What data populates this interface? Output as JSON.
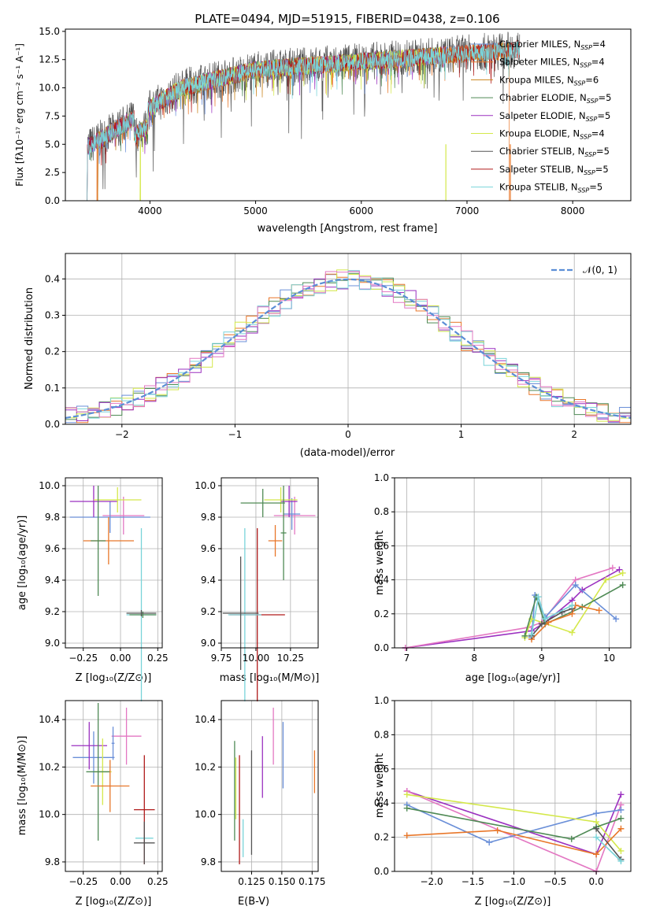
{
  "colors": {
    "chabrier_miles": "#6a8fd8",
    "salpeter_miles": "#e8772a",
    "kroupa_miles": "#c9821a",
    "chabrier_elodie": "#4f8a55",
    "salpeter_elodie": "#9b30c0",
    "kroupa_elodie": "#d4e84a",
    "chabrier_stelib": "#555555",
    "salpeter_stelib": "#b01a1a",
    "kroupa_stelib": "#79d4d9",
    "pink": "#e377c2"
  },
  "chart_data": [
    {
      "type": "line",
      "title": "PLATE=0494, MJD=51915, FIBERID=0438, z=0.106",
      "xlabel": "wavelength [Angstrom, rest frame]",
      "ylabel": "Flux [fλ10⁻¹⁷ erg cm⁻² s⁻¹ A⁻¹]",
      "xlim": [
        3200,
        8550
      ],
      "ylim": [
        0,
        15.2
      ],
      "xticks": [
        "4000",
        "5000",
        "6000",
        "7000",
        "8000"
      ],
      "yticks": [
        "0.0",
        "2.5",
        "5.0",
        "7.5",
        "10.0",
        "12.5",
        "15.0"
      ],
      "legend": "right",
      "series": [
        {
          "name": "Chabrier MILES, N_SSP=4",
          "label": "Chabrier MILES, N",
          "sub": "SSP",
          "suffix": "=4",
          "range": [
            3500,
            7400
          ]
        },
        {
          "name": "Salpeter MILES, N_SSP=4",
          "label": "Salpeter MILES, N",
          "sub": "SSP",
          "suffix": "=4",
          "range": [
            3500,
            7400
          ]
        },
        {
          "name": "Kroupa MILES, N_SSP=6",
          "label": "Kroupa MILES, N",
          "sub": "SSP",
          "suffix": "=6",
          "range": [
            3500,
            7400
          ]
        },
        {
          "name": "Chabrier ELODIE, N_SSP=5",
          "label": "Chabrier ELODIE, N",
          "sub": "SSP",
          "suffix": "=5",
          "range": [
            3400,
            6800
          ]
        },
        {
          "name": "Salpeter ELODIE, N_SSP=5",
          "label": "Salpeter ELODIE, N",
          "sub": "SSP",
          "suffix": "=5",
          "range": [
            3400,
            6800
          ]
        },
        {
          "name": "Kroupa ELODIE, N_SSP=4",
          "label": "Kroupa ELODIE, N",
          "sub": "SSP",
          "suffix": "=4",
          "range": [
            3900,
            6800
          ]
        },
        {
          "name": "Chabrier STELIB, N_SSP=5",
          "label": "Chabrier STELIB, N",
          "sub": "SSP",
          "suffix": "=5",
          "range": [
            3400,
            7500
          ]
        },
        {
          "name": "Salpeter STELIB, N_SSP=5",
          "label": "Salpeter STELIB, N",
          "sub": "SSP",
          "suffix": "=5",
          "range": [
            3400,
            7500
          ]
        },
        {
          "name": "Kroupa STELIB, N_SSP=5",
          "label": "Kroupa STELIB, N",
          "sub": "SSP",
          "suffix": "=5",
          "range": [
            3400,
            7500
          ]
        }
      ]
    },
    {
      "type": "bar",
      "xlabel": "(data-model)/error",
      "ylabel": "Normed distribution",
      "xlim": [
        -2.5,
        2.5
      ],
      "ylim": [
        0,
        0.47
      ],
      "xticks": [
        "−2",
        "−1",
        "0",
        "1",
        "2"
      ],
      "yticks": [
        "0.0",
        "0.1",
        "0.2",
        "0.3",
        "0.4"
      ],
      "legend_entry": "𝒩(0, 1)",
      "legend": "top-right"
    },
    {
      "type": "scatter",
      "ylabel": "age  [log₁₀(age/yr)]",
      "xlabel": "Z [log₁₀(Z/Z⊙)]",
      "xlim": [
        -0.37,
        0.28
      ],
      "ylim": [
        8.97,
        10.05
      ],
      "xticks": [
        "−0.25",
        "0.00",
        "0.25"
      ],
      "yticks": [
        "9.0",
        "9.2",
        "9.4",
        "9.6",
        "9.8",
        "10.0"
      ]
    },
    {
      "type": "scatter",
      "xlabel": "mass [log₁₀(M/M⊙)]",
      "xlim": [
        9.75,
        10.45
      ],
      "ylim": [
        8.97,
        10.05
      ],
      "xticks": [
        "9.75",
        "10.00",
        "10.25"
      ],
      "yticks": [
        "9.0",
        "9.2",
        "9.4",
        "9.6",
        "9.8",
        "10.0"
      ]
    },
    {
      "type": "line",
      "ylabel": "mass weight",
      "xlabel": "age  [log₁₀(age/yr)]",
      "xlim": [
        6.82,
        10.32
      ],
      "ylim": [
        0,
        1.0
      ],
      "xticks": [
        "7",
        "8",
        "9",
        "10"
      ],
      "yticks": [
        "0.0",
        "0.2",
        "0.4",
        "0.6",
        "0.8",
        "1.0"
      ]
    },
    {
      "type": "scatter",
      "ylabel": "mass [log₁₀(M/M⊙)]",
      "xlabel": "Z [log₁₀(Z/Z⊙)]",
      "xlim": [
        -0.37,
        0.28
      ],
      "ylim": [
        9.76,
        10.48
      ],
      "xticks": [
        "−0.25",
        "0.00",
        "0.25"
      ],
      "yticks": [
        "9.8",
        "10.0",
        "10.2",
        "10.4"
      ]
    },
    {
      "type": "scatter",
      "xlabel": "E(B-V)",
      "xlim": [
        0.1,
        0.18
      ],
      "ylim": [
        9.76,
        10.48
      ],
      "xticks": [
        "0.125",
        "0.150",
        "0.175"
      ],
      "yticks": [
        "9.8",
        "10.0",
        "10.2",
        "10.4"
      ]
    },
    {
      "type": "line",
      "ylabel": "mass weight",
      "xlabel": "Z [log₁₀(Z/Z⊙)]",
      "xlim": [
        -2.45,
        0.42
      ],
      "ylim": [
        0,
        1.0
      ],
      "xticks": [
        "−2.0",
        "−1.5",
        "−1.0",
        "−0.5",
        "0.0"
      ],
      "yticks": [
        "0.0",
        "0.2",
        "0.4",
        "0.6",
        "0.8",
        "1.0"
      ]
    }
  ],
  "errorbars": {
    "age_vs_Z": [
      {
        "c": "pink",
        "x": 0.02,
        "xe": 0.14,
        "y": 9.81,
        "ye": 0.12
      },
      {
        "c": "chabrier_miles",
        "x": -0.07,
        "xe": 0.27,
        "y": 9.8,
        "ye": 0.1
      },
      {
        "c": "salpeter_elodie",
        "x": -0.18,
        "xe": 0.16,
        "y": 9.9,
        "ye": 0.1
      },
      {
        "c": "kroupa_elodie",
        "x": -0.02,
        "xe": 0.16,
        "y": 9.91,
        "ye": 0.08
      },
      {
        "c": "salpeter_miles",
        "x": -0.08,
        "xe": 0.17,
        "y": 9.65,
        "ye": 0.15
      },
      {
        "c": "chabrier_elodie",
        "x": -0.15,
        "xe": 0.05,
        "y": 9.65,
        "ye": 0.35
      },
      {
        "c": "kroupa_stelib",
        "x": 0.14,
        "xe": 0.1,
        "y": 9.18,
        "ye": 0.55
      },
      {
        "c": "chabrier_elodie",
        "x": 0.15,
        "xe": 0.09,
        "y": 9.18,
        "ye": 0.02
      },
      {
        "c": "chabrier_stelib",
        "x": 0.14,
        "xe": 0.1,
        "y": 9.19,
        "ye": 0.02
      }
    ],
    "age_vs_mass": [
      {
        "c": "pink",
        "x": 10.28,
        "xe": 0.15,
        "y": 9.81,
        "ye": 0.12
      },
      {
        "c": "chabrier_miles",
        "x": 10.26,
        "xe": 0.06,
        "y": 9.82,
        "ye": 0.1
      },
      {
        "c": "salpeter_elodie",
        "x": 10.24,
        "xe": 0.06,
        "y": 9.9,
        "ye": 0.1
      },
      {
        "c": "kroupa_elodie",
        "x": 10.18,
        "xe": 0.12,
        "y": 9.91,
        "ye": 0.08
      },
      {
        "c": "chabrier_elodie",
        "x": 10.05,
        "xe": 0.16,
        "y": 9.89,
        "ye": 0.09
      },
      {
        "c": "salpeter_miles",
        "x": 10.14,
        "xe": 0.05,
        "y": 9.65,
        "ye": 0.1
      },
      {
        "c": "salpeter_stelib",
        "x": 10.01,
        "xe": 0.2,
        "y": 9.18,
        "ye": 0.55
      },
      {
        "c": "kroupa_stelib",
        "x": 9.92,
        "xe": 0.12,
        "y": 9.18,
        "ye": 0.55
      },
      {
        "c": "chabrier_stelib",
        "x": 9.89,
        "xe": 0.13,
        "y": 9.19,
        "ye": 0.36
      },
      {
        "c": "chabrier_elodie",
        "x": 10.2,
        "xe": 0.02,
        "y": 9.7,
        "ye": 0.3
      }
    ],
    "mass_vs_Z": [
      {
        "c": "pink",
        "x": 0.04,
        "xe": 0.1,
        "y": 10.33,
        "ye": 0.12
      },
      {
        "c": "chabrier_miles",
        "x": -0.18,
        "xe": 0.14,
        "y": 10.24,
        "ye": 0.11
      },
      {
        "c": "salpeter_elodie",
        "x": -0.21,
        "xe": 0.12,
        "y": 10.29,
        "ye": 0.1
      },
      {
        "c": "kroupa_elodie",
        "x": -0.12,
        "xe": 0.06,
        "y": 10.18,
        "ye": 0.14
      },
      {
        "c": "chabrier_elodie",
        "x": -0.15,
        "xe": 0.08,
        "y": 10.18,
        "ye": 0.29
      },
      {
        "c": "salpeter_miles",
        "x": -0.07,
        "xe": 0.13,
        "y": 10.12,
        "ye": 0.11
      },
      {
        "c": "kroupa_stelib",
        "x": 0.16,
        "xe": 0.06,
        "y": 9.9,
        "ye": 0.07
      },
      {
        "c": "salpeter_stelib",
        "x": 0.16,
        "xe": 0.07,
        "y": 10.02,
        "ye": 0.23
      },
      {
        "c": "chabrier_stelib",
        "x": 0.16,
        "xe": 0.07,
        "y": 9.88,
        "ye": 0.09
      },
      {
        "c": "chabrier_miles",
        "x": -0.05,
        "xe": 0.01,
        "y": 10.3,
        "ye": 0.07
      }
    ],
    "mass_vs_ebv": [
      {
        "c": "pink",
        "x": 0.143,
        "y": 10.33,
        "ye": 0.12
      },
      {
        "c": "chabrier_miles",
        "x": 0.151,
        "y": 10.25,
        "ye": 0.14
      },
      {
        "c": "salpeter_elodie",
        "x": 0.134,
        "y": 10.2,
        "ye": 0.13
      },
      {
        "c": "kroupa_elodie",
        "x": 0.112,
        "y": 10.11,
        "ye": 0.13
      },
      {
        "c": "chabrier_elodie",
        "x": 0.111,
        "y": 10.1,
        "ye": 0.21
      },
      {
        "c": "salpeter_miles",
        "x": 0.177,
        "y": 10.18,
        "ye": 0.09
      },
      {
        "c": "salpeter_stelib",
        "x": 0.115,
        "y": 10.02,
        "ye": 0.23
      },
      {
        "c": "kroupa_stelib",
        "x": 0.118,
        "y": 9.9,
        "ye": 0.08
      },
      {
        "c": "chabrier_stelib",
        "x": 0.125,
        "y": 10.05,
        "ye": 0.22
      }
    ]
  },
  "mw_age": [
    {
      "c": "salpeter_elodie",
      "pts": [
        [
          6.98,
          0.0
        ],
        [
          8.85,
          0.1
        ],
        [
          9.05,
          0.15
        ],
        [
          9.45,
          0.28
        ],
        [
          9.6,
          0.34
        ],
        [
          10.15,
          0.46
        ]
      ]
    },
    {
      "c": "pink",
      "pts": [
        [
          6.98,
          0.0
        ],
        [
          8.8,
          0.12
        ],
        [
          9.0,
          0.15
        ],
        [
          9.5,
          0.4
        ],
        [
          10.05,
          0.47
        ]
      ]
    },
    {
      "c": "chabrier_miles",
      "pts": [
        [
          8.85,
          0.06
        ],
        [
          8.9,
          0.31
        ],
        [
          9.05,
          0.18
        ],
        [
          9.5,
          0.37
        ],
        [
          10.1,
          0.17
        ]
      ]
    },
    {
      "c": "kroupa_elodie",
      "pts": [
        [
          8.75,
          0.06
        ],
        [
          8.85,
          0.17
        ],
        [
          9.45,
          0.09
        ],
        [
          9.95,
          0.4
        ],
        [
          10.2,
          0.44
        ]
      ]
    },
    {
      "c": "chabrier_elodie",
      "pts": [
        [
          8.75,
          0.07
        ],
        [
          8.92,
          0.3
        ],
        [
          9.05,
          0.14
        ],
        [
          9.6,
          0.24
        ],
        [
          10.2,
          0.37
        ]
      ]
    },
    {
      "c": "salpeter_miles",
      "pts": [
        [
          8.85,
          0.05
        ],
        [
          9.1,
          0.15
        ],
        [
          9.45,
          0.2
        ],
        [
          9.5,
          0.25
        ],
        [
          9.85,
          0.22
        ]
      ]
    },
    {
      "c": "chabrier_stelib",
      "pts": [
        [
          8.85,
          0.07
        ],
        [
          9.0,
          0.14
        ],
        [
          9.3,
          0.21
        ],
        [
          9.45,
          0.23
        ]
      ]
    },
    {
      "c": "kroupa_stelib",
      "pts": [
        [
          8.85,
          0.08
        ],
        [
          8.95,
          0.3
        ],
        [
          9.05,
          0.17
        ],
        [
          9.45,
          0.25
        ]
      ]
    }
  ],
  "mw_Z": [
    {
      "c": "salpeter_elodie",
      "pts": [
        [
          -2.3,
          0.47
        ],
        [
          0.0,
          0.1
        ],
        [
          0.3,
          0.45
        ]
      ]
    },
    {
      "c": "pink",
      "pts": [
        [
          -2.3,
          0.47
        ],
        [
          0.0,
          0.0
        ],
        [
          0.3,
          0.39
        ]
      ]
    },
    {
      "c": "chabrier_miles",
      "pts": [
        [
          -2.3,
          0.39
        ],
        [
          -1.3,
          0.17
        ],
        [
          0.0,
          0.34
        ],
        [
          0.3,
          0.36
        ]
      ]
    },
    {
      "c": "kroupa_elodie",
      "pts": [
        [
          -2.3,
          0.45
        ],
        [
          0.0,
          0.29
        ],
        [
          0.3,
          0.12
        ]
      ]
    },
    {
      "c": "chabrier_elodie",
      "pts": [
        [
          -2.3,
          0.37
        ],
        [
          -0.3,
          0.19
        ],
        [
          0.0,
          0.26
        ],
        [
          0.3,
          0.31
        ]
      ]
    },
    {
      "c": "salpeter_miles",
      "pts": [
        [
          -2.3,
          0.21
        ],
        [
          -1.2,
          0.24
        ],
        [
          0.0,
          0.1
        ],
        [
          0.3,
          0.25
        ]
      ]
    },
    {
      "c": "chabrier_stelib",
      "pts": [
        [
          0.0,
          0.25
        ],
        [
          0.3,
          0.07
        ]
      ]
    },
    {
      "c": "kroupa_stelib",
      "pts": [
        [
          0.0,
          0.2
        ],
        [
          0.3,
          0.06
        ]
      ]
    }
  ]
}
